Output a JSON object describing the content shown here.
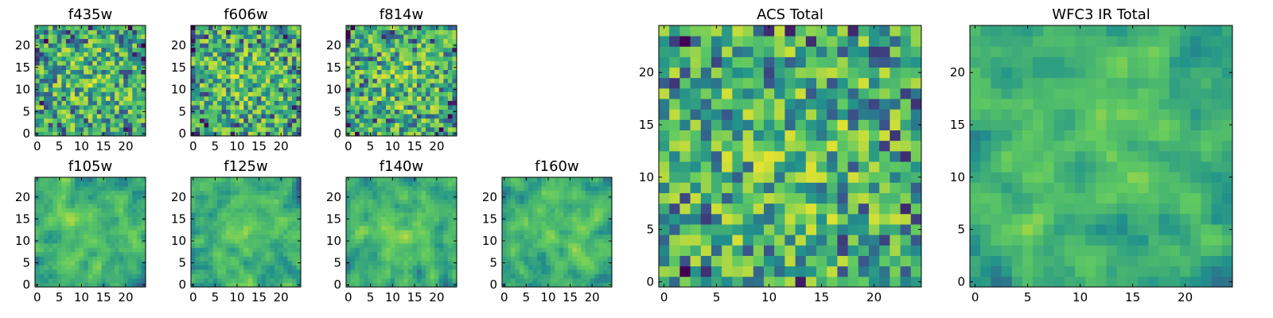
{
  "colormap": [
    "#440154",
    "#3b528b",
    "#21918c",
    "#5ec962",
    "#fde725"
  ],
  "chart_data": [
    {
      "type": "heatmap",
      "title": "f435w",
      "grid_size": 25,
      "seed": 11,
      "smooth": 0,
      "xlim": [
        0,
        24
      ],
      "ylim": [
        0,
        24
      ],
      "xticks": [
        "0",
        "5",
        "10",
        "15",
        "20"
      ],
      "yticks": [
        "0",
        "5",
        "10",
        "15",
        "20"
      ]
    },
    {
      "type": "heatmap",
      "title": "f606w",
      "grid_size": 25,
      "seed": 23,
      "smooth": 0,
      "xlim": [
        0,
        24
      ],
      "ylim": [
        0,
        24
      ],
      "xticks": [
        "0",
        "5",
        "10",
        "15",
        "20"
      ],
      "yticks": [
        "0",
        "5",
        "10",
        "15",
        "20"
      ]
    },
    {
      "type": "heatmap",
      "title": "f814w",
      "grid_size": 25,
      "seed": 37,
      "smooth": 0,
      "xlim": [
        0,
        24
      ],
      "ylim": [
        0,
        24
      ],
      "xticks": [
        "0",
        "5",
        "10",
        "15",
        "20"
      ],
      "yticks": [
        "0",
        "5",
        "10",
        "15",
        "20"
      ]
    },
    {
      "type": "heatmap",
      "title": "f105w",
      "grid_size": 25,
      "seed": 41,
      "smooth": 1,
      "xlim": [
        0,
        24
      ],
      "ylim": [
        0,
        24
      ],
      "xticks": [
        "0",
        "5",
        "10",
        "15",
        "20"
      ],
      "yticks": [
        "0",
        "5",
        "10",
        "15",
        "20"
      ]
    },
    {
      "type": "heatmap",
      "title": "f125w",
      "grid_size": 25,
      "seed": 53,
      "smooth": 1,
      "xlim": [
        0,
        24
      ],
      "ylim": [
        0,
        24
      ],
      "xticks": [
        "0",
        "5",
        "10",
        "15",
        "20"
      ],
      "yticks": [
        "0",
        "5",
        "10",
        "15",
        "20"
      ]
    },
    {
      "type": "heatmap",
      "title": "f140w",
      "grid_size": 25,
      "seed": 67,
      "smooth": 1,
      "xlim": [
        0,
        24
      ],
      "ylim": [
        0,
        24
      ],
      "xticks": [
        "0",
        "5",
        "10",
        "15",
        "20"
      ],
      "yticks": [
        "0",
        "5",
        "10",
        "15",
        "20"
      ]
    },
    {
      "type": "heatmap",
      "title": "f160w",
      "grid_size": 25,
      "seed": 79,
      "smooth": 1,
      "xlim": [
        0,
        24
      ],
      "ylim": [
        0,
        24
      ],
      "xticks": [
        "0",
        "5",
        "10",
        "15",
        "20"
      ],
      "yticks": [
        "0",
        "5",
        "10",
        "15",
        "20"
      ]
    },
    {
      "type": "heatmap",
      "title": "ACS Total",
      "grid_size": 25,
      "seed": 97,
      "smooth": 0,
      "xlim": [
        0,
        24
      ],
      "ylim": [
        0,
        24
      ],
      "xticks": [
        "0",
        "5",
        "10",
        "15",
        "20"
      ],
      "yticks": [
        "0",
        "5",
        "10",
        "15",
        "20"
      ]
    },
    {
      "type": "heatmap",
      "title": "WFC3 IR Total",
      "grid_size": 25,
      "seed": 131,
      "smooth": 1,
      "xlim": [
        0,
        24
      ],
      "ylim": [
        0,
        24
      ],
      "xticks": [
        "0",
        "5",
        "10",
        "15",
        "20"
      ],
      "yticks": [
        "0",
        "5",
        "10",
        "15",
        "20"
      ]
    }
  ]
}
